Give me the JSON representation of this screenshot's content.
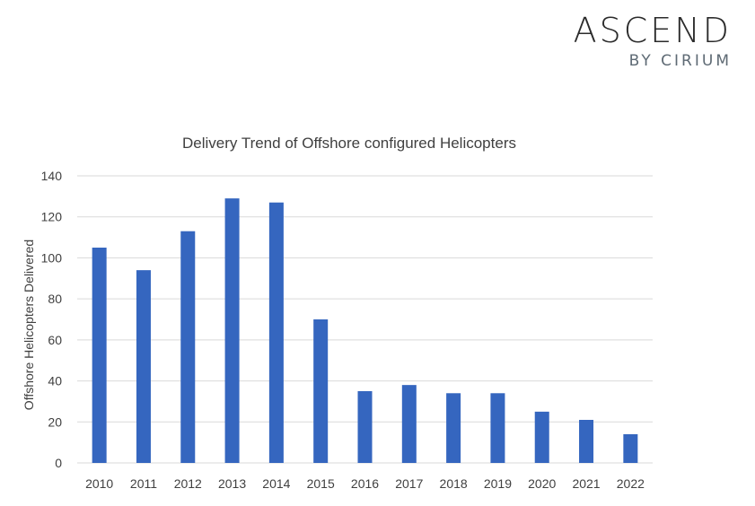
{
  "logo": {
    "main": "ASCEND",
    "sub": "BY CIRIUM"
  },
  "colors": {
    "bar": "#3566bf",
    "grid": "#d9d9d9",
    "text": "#404040"
  },
  "chart_data": {
    "type": "bar",
    "title": "Delivery Trend of Offshore configured Helicopters",
    "xlabel": "",
    "ylabel": "Offshore Helicopters Delivered",
    "categories": [
      "2010",
      "2011",
      "2012",
      "2013",
      "2014",
      "2015",
      "2016",
      "2017",
      "2018",
      "2019",
      "2020",
      "2021",
      "2022"
    ],
    "values": [
      105,
      94,
      113,
      129,
      127,
      70,
      35,
      38,
      34,
      34,
      25,
      21,
      14
    ],
    "ylim": [
      0,
      140
    ],
    "yticks": [
      0,
      20,
      40,
      60,
      80,
      100,
      120,
      140
    ],
    "grid": true,
    "legend": "none"
  }
}
